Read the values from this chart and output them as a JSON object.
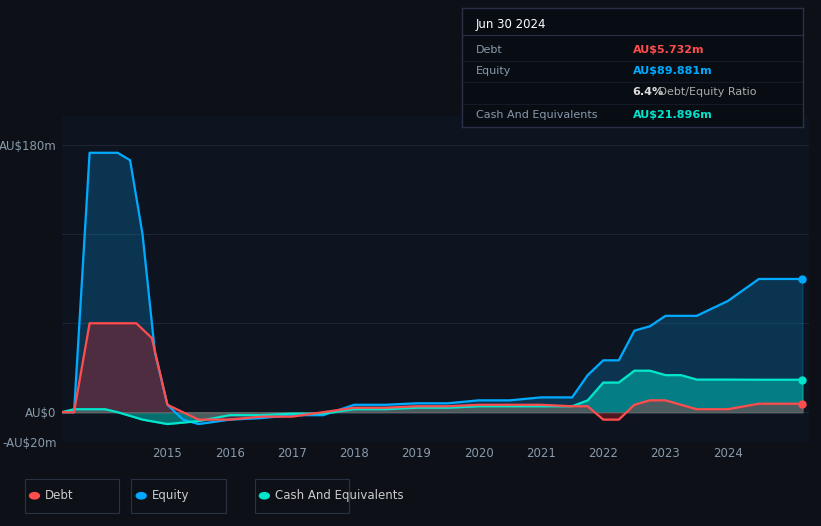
{
  "bg_color": "#0d1117",
  "plot_bg_color": "#0d1420",
  "grid_color": "#1e2535",
  "ylim": [
    -20,
    200
  ],
  "yticks": [
    -20,
    0,
    180
  ],
  "ytick_labels": [
    "-AU$20m",
    "AU$0",
    "AU$180m"
  ],
  "grid_lines": [
    -20,
    0,
    60,
    120,
    180
  ],
  "xlim_start": 2013.3,
  "xlim_end": 2025.3,
  "xtick_years": [
    2015,
    2016,
    2017,
    2018,
    2019,
    2020,
    2021,
    2022,
    2023,
    2024
  ],
  "info_box": {
    "title": "Jun 30 2024",
    "rows": [
      {
        "label": "Debt",
        "value": "AU$5.732m",
        "value_color": "#ff4d4d",
        "label_color": "#8899aa"
      },
      {
        "label": "Equity",
        "value": "AU$89.881m",
        "value_color": "#00aaff",
        "label_color": "#8899aa"
      },
      {
        "label": "",
        "value": "6.4%",
        "suffix": " Debt/Equity Ratio",
        "value_color": "#dddddd",
        "label_color": "#8899aa"
      },
      {
        "label": "Cash And Equivalents",
        "value": "AU$21.896m",
        "value_color": "#00e5cc",
        "label_color": "#8899aa"
      }
    ]
  },
  "debt": {
    "x": [
      2013.3,
      2013.5,
      2013.75,
      2014.0,
      2014.25,
      2014.5,
      2014.75,
      2015.0,
      2015.25,
      2015.5,
      2016.0,
      2016.5,
      2017.0,
      2017.5,
      2018.0,
      2018.5,
      2019.0,
      2019.5,
      2020.0,
      2020.5,
      2021.0,
      2021.5,
      2021.75,
      2022.0,
      2022.25,
      2022.5,
      2022.75,
      2023.0,
      2023.5,
      2024.0,
      2024.5,
      2025.0,
      2025.2
    ],
    "y": [
      0,
      0,
      60,
      60,
      60,
      60,
      50,
      5,
      0,
      -5,
      -5,
      -3,
      -3,
      0,
      3,
      3,
      4,
      4,
      5,
      5,
      5,
      4,
      4,
      -5,
      -5,
      5,
      8,
      8,
      2,
      2,
      5.732,
      5.732,
      5.732
    ],
    "color": "#ff4d4d",
    "label": "Debt"
  },
  "equity": {
    "x": [
      2013.3,
      2013.5,
      2013.75,
      2014.0,
      2014.1,
      2014.2,
      2014.4,
      2014.6,
      2014.8,
      2015.0,
      2015.25,
      2015.5,
      2016.0,
      2016.5,
      2017.0,
      2017.5,
      2018.0,
      2018.5,
      2019.0,
      2019.5,
      2020.0,
      2020.5,
      2021.0,
      2021.5,
      2021.75,
      2022.0,
      2022.25,
      2022.5,
      2022.75,
      2023.0,
      2023.25,
      2023.5,
      2024.0,
      2024.5,
      2025.0,
      2025.2
    ],
    "y": [
      0,
      0,
      175,
      175,
      175,
      175,
      170,
      120,
      40,
      5,
      -5,
      -8,
      -5,
      -4,
      -2,
      -2,
      5,
      5,
      6,
      6,
      8,
      8,
      10,
      10,
      25,
      35,
      35,
      55,
      58,
      65,
      65,
      65,
      75,
      89.881,
      89.881,
      89.881
    ],
    "color": "#00aaff",
    "label": "Equity"
  },
  "cash": {
    "x": [
      2013.3,
      2013.5,
      2013.75,
      2014.0,
      2014.2,
      2014.6,
      2015.0,
      2015.5,
      2016.0,
      2016.5,
      2017.0,
      2017.5,
      2018.0,
      2018.5,
      2019.0,
      2019.5,
      2020.0,
      2020.5,
      2021.0,
      2021.5,
      2021.75,
      2022.0,
      2022.25,
      2022.5,
      2022.75,
      2023.0,
      2023.25,
      2023.5,
      2024.0,
      2024.5,
      2025.0,
      2025.2
    ],
    "y": [
      0,
      2,
      2,
      2,
      0,
      -5,
      -8,
      -6,
      -2,
      -2,
      -1,
      -1,
      2,
      2,
      3,
      3,
      4,
      4,
      4,
      4,
      8,
      20,
      20,
      28,
      28,
      25,
      25,
      22,
      22,
      21.896,
      21.896,
      21.896
    ],
    "color": "#00e5cc",
    "label": "Cash And Equivalents"
  },
  "legend_items": [
    {
      "label": "Debt",
      "color": "#ff4d4d"
    },
    {
      "label": "Equity",
      "color": "#00aaff"
    },
    {
      "label": "Cash And Equivalents",
      "color": "#00e5cc"
    }
  ]
}
